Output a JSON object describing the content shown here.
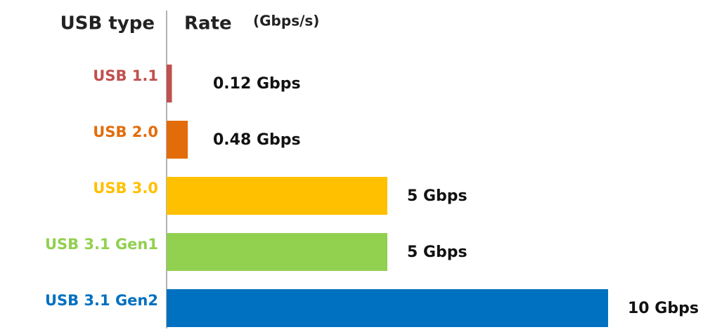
{
  "chart_data": {
    "type": "bar",
    "orientation": "horizontal",
    "header": {
      "category_label": "USB type",
      "value_label": "Rate",
      "unit": "(Gbps/s)"
    },
    "categories": [
      "USB 1.1",
      "USB 2.0",
      "USB 3.0",
      "USB 3.1 Gen1",
      "USB 3.1 Gen2"
    ],
    "values": [
      0.12,
      0.48,
      5,
      5,
      10
    ],
    "value_labels": [
      "0.12 Gbps",
      "0.48 Gbps",
      "5 Gbps",
      "5 Gbps",
      "10 Gbps"
    ],
    "colors": [
      "#c0504d",
      "#e36c0a",
      "#ffc000",
      "#92d050",
      "#0070c0"
    ]
  }
}
